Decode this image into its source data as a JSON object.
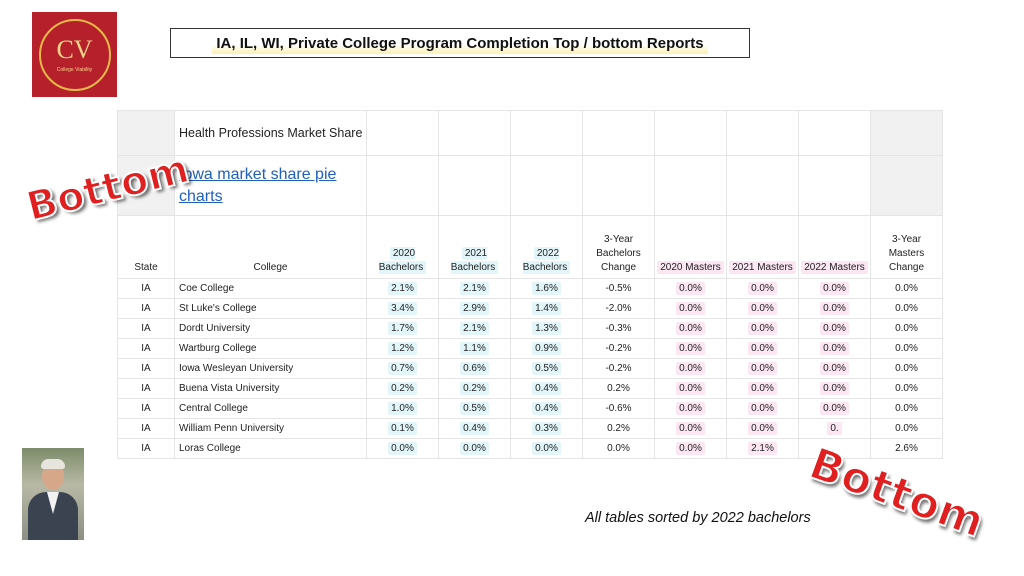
{
  "logo": {
    "monogram": "CV",
    "subtitle": "College Viability"
  },
  "title": "IA, IL, WI, Private College Program Completion Top / bottom Reports",
  "topic": "Health Professions Market Share",
  "link": "Iowa market share pie charts",
  "stamp_text": "Bottom",
  "footer": "All tables sorted by 2022 bachelors",
  "colors": {
    "stamp": "#e02020",
    "logo_bg": "#b5202a",
    "link": "#1f5fbf",
    "highlight_bachelors": "#e2f6fa",
    "highlight_masters": "#fbe6f2"
  },
  "table": {
    "headers": {
      "state": "State",
      "college": "College",
      "b2020": "2020 Bachelors",
      "b2021": "2021 Bachelors",
      "b2022": "2022 Bachelors",
      "bchg": "3-Year Bachelors Change",
      "m2020": "2020 Masters",
      "m2021": "2021 Masters",
      "m2022": "2022 Masters",
      "mchg": "3-Year Masters Change"
    },
    "rows": [
      {
        "state": "IA",
        "college": "Coe College",
        "b2020": "2.1%",
        "b2021": "2.1%",
        "b2022": "1.6%",
        "bchg": "-0.5%",
        "m2020": "0.0%",
        "m2021": "0.0%",
        "m2022": "0.0%",
        "mchg": "0.0%"
      },
      {
        "state": "IA",
        "college": "St Luke's College",
        "b2020": "3.4%",
        "b2021": "2.9%",
        "b2022": "1.4%",
        "bchg": "-2.0%",
        "m2020": "0.0%",
        "m2021": "0.0%",
        "m2022": "0.0%",
        "mchg": "0.0%"
      },
      {
        "state": "IA",
        "college": "Dordt University",
        "b2020": "1.7%",
        "b2021": "2.1%",
        "b2022": "1.3%",
        "bchg": "-0.3%",
        "m2020": "0.0%",
        "m2021": "0.0%",
        "m2022": "0.0%",
        "mchg": "0.0%"
      },
      {
        "state": "IA",
        "college": "Wartburg College",
        "b2020": "1.2%",
        "b2021": "1.1%",
        "b2022": "0.9%",
        "bchg": "-0.2%",
        "m2020": "0.0%",
        "m2021": "0.0%",
        "m2022": "0.0%",
        "mchg": "0.0%"
      },
      {
        "state": "IA",
        "college": "Iowa Wesleyan University",
        "b2020": "0.7%",
        "b2021": "0.6%",
        "b2022": "0.5%",
        "bchg": "-0.2%",
        "m2020": "0.0%",
        "m2021": "0.0%",
        "m2022": "0.0%",
        "mchg": "0.0%"
      },
      {
        "state": "IA",
        "college": "Buena Vista University",
        "b2020": "0.2%",
        "b2021": "0.2%",
        "b2022": "0.4%",
        "bchg": "0.2%",
        "m2020": "0.0%",
        "m2021": "0.0%",
        "m2022": "0.0%",
        "mchg": "0.0%"
      },
      {
        "state": "IA",
        "college": "Central College",
        "b2020": "1.0%",
        "b2021": "0.5%",
        "b2022": "0.4%",
        "bchg": "-0.6%",
        "m2020": "0.0%",
        "m2021": "0.0%",
        "m2022": "0.0%",
        "mchg": "0.0%"
      },
      {
        "state": "IA",
        "college": "William Penn University",
        "b2020": "0.1%",
        "b2021": "0.4%",
        "b2022": "0.3%",
        "bchg": "0.2%",
        "m2020": "0.0%",
        "m2021": "0.0%",
        "m2022": "0.",
        "mchg": "0.0%"
      },
      {
        "state": "IA",
        "college": "Loras College",
        "b2020": "0.0%",
        "b2021": "0.0%",
        "b2022": "0.0%",
        "bchg": "0.0%",
        "m2020": "0.0%",
        "m2021": "2.1%",
        "m2022": "",
        "mchg": "2.6%"
      }
    ]
  }
}
